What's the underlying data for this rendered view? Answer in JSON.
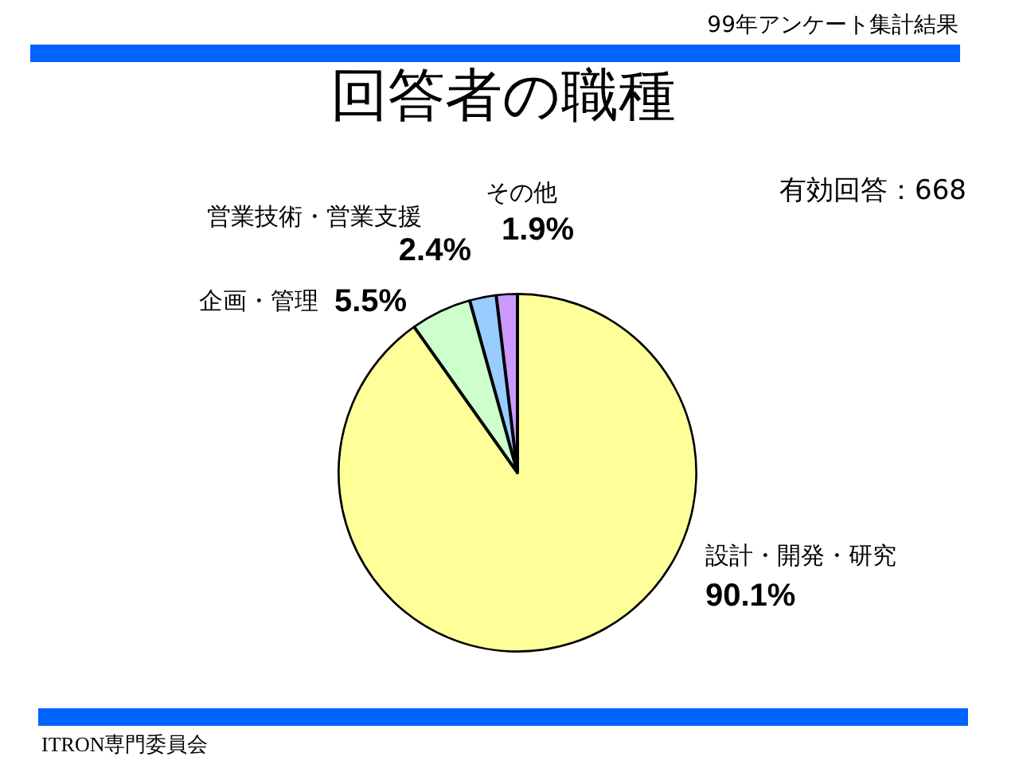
{
  "chart_data": {
    "type": "pie",
    "title": "回答者の職種",
    "categories": [
      "設計・開発・研究",
      "企画・管理",
      "営業技術・営業支援",
      "その他"
    ],
    "values": [
      90.1,
      5.5,
      2.4,
      1.9
    ],
    "colors": [
      "#ffff99",
      "#ccffcc",
      "#99ccff",
      "#cc99ff"
    ],
    "value_labels": [
      "90.1%",
      "5.5%",
      "2.4%",
      "1.9%"
    ],
    "legend": false,
    "annotations": [
      "99年アンケート集計結果",
      "有効回答：668",
      "ITRON専門委員会"
    ]
  }
}
